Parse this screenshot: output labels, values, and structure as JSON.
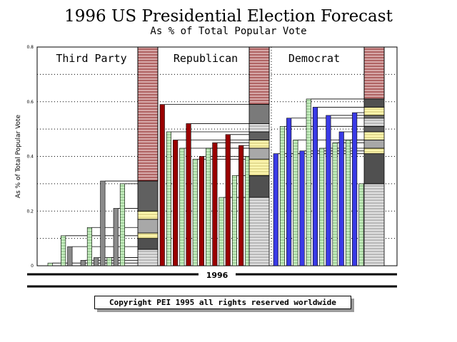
{
  "colors": {
    "third_party": "#8a8a8a",
    "republican": "#9a0000",
    "democrat": "#3a3ae6",
    "green_bar": "#bfe8b8",
    "stack_pink": "#c49090"
  },
  "chart_data": {
    "type": "bar",
    "title": "1996 US Presidential Election Forecast",
    "subtitle": "As % of Total Popular Vote",
    "ylabel": "As % of Total Popular Vote",
    "xlabel": "1996",
    "ylim": [
      0,
      0.8
    ],
    "yticks": [
      "0",
      "0.2",
      "0.4",
      "0.6",
      "0.8"
    ],
    "groups": [
      {
        "name": "Third Party",
        "bar_color": "third_party",
        "values": [
          0.01,
          0.0,
          0.11,
          0.07,
          0.0,
          0.02,
          0.14,
          0.03,
          0.31,
          0.03,
          0.21,
          0.3
        ],
        "stack": [
          0.06,
          0.1,
          0.12,
          0.17,
          0.2,
          0.31
        ]
      },
      {
        "name": "Republican",
        "bar_color": "republican",
        "values": [
          0.59,
          0.49,
          0.46,
          0.43,
          0.52,
          0.39,
          0.4,
          0.43,
          0.45,
          0.25,
          0.48,
          0.33,
          0.44,
          0.4
        ],
        "stack": [
          0.25,
          0.33,
          0.39,
          0.43,
          0.46,
          0.49,
          0.52,
          0.59
        ]
      },
      {
        "name": "Democrat",
        "bar_color": "democrat",
        "values": [
          0.41,
          0.51,
          0.54,
          0.46,
          0.42,
          0.61,
          0.58,
          0.43,
          0.55,
          0.45,
          0.49,
          0.46,
          0.56,
          0.3
        ],
        "stack": [
          0.3,
          0.41,
          0.43,
          0.46,
          0.49,
          0.51,
          0.54,
          0.55,
          0.58,
          0.61
        ]
      }
    ]
  },
  "footer": {
    "copyright": "Copyright PEI 1995 all rights reserved worldwide"
  }
}
